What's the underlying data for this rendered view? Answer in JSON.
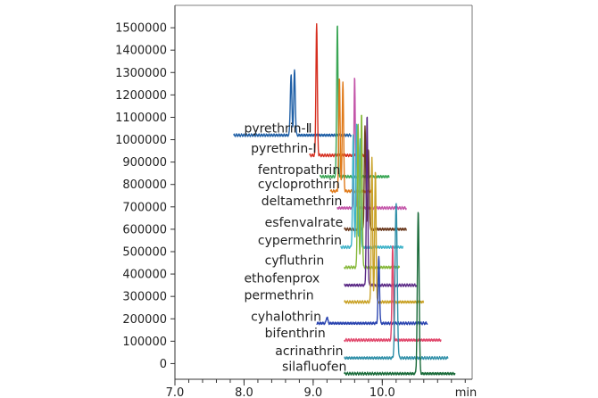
{
  "chart_data": {
    "type": "line",
    "title": "",
    "xlabel": "min",
    "ylabel": "",
    "xlim": [
      7.0,
      11.3
    ],
    "ylim": [
      -70000,
      1600000
    ],
    "grid": false,
    "legend": "inline-labels",
    "x_ticks": [
      "7.0",
      "8.0",
      "9.0",
      "10.0"
    ],
    "x_tick_values": [
      7.0,
      8.0,
      9.0,
      10.0
    ],
    "x_minor_step": 0.2,
    "y_ticks": [
      "0",
      "100000",
      "200000",
      "300000",
      "400000",
      "500000",
      "600000",
      "700000",
      "800000",
      "900000",
      "1000000",
      "1100000",
      "1200000",
      "1300000",
      "1400000",
      "1500000"
    ],
    "y_tick_values": [
      0,
      100000,
      200000,
      300000,
      400000,
      500000,
      600000,
      700000,
      800000,
      900000,
      1000000,
      1100000,
      1200000,
      1300000,
      1400000,
      1500000
    ],
    "series": [
      {
        "name": "pyrethrin-Ⅱ",
        "color": "#1f5fa6",
        "label_x": 8.0,
        "baseline": 1020000,
        "trace_start": 7.85,
        "trace_end": 9.55,
        "peaks": [
          {
            "rt": 8.68,
            "height": 1290000,
            "width": 0.022
          },
          {
            "rt": 8.73,
            "height": 1310000,
            "width": 0.022
          }
        ]
      },
      {
        "name": "pyrethrin-Ⅰ",
        "color": "#d62e1f",
        "label_x": 8.1,
        "baseline": 930000,
        "trace_start": 8.95,
        "trace_end": 9.8,
        "peaks": [
          {
            "rt": 9.05,
            "height": 1520000,
            "width": 0.02
          }
        ]
      },
      {
        "name": "fentropathrin",
        "color": "#3aa655",
        "label_x": 8.2,
        "baseline": 835000,
        "trace_start": 9.1,
        "trace_end": 10.1,
        "peaks": [
          {
            "rt": 9.35,
            "height": 1520000,
            "width": 0.02
          }
        ]
      },
      {
        "name": "cycloprothrin",
        "color": "#e07a1a",
        "label_x": 8.2,
        "baseline": 770000,
        "trace_start": 9.25,
        "trace_end": 9.85,
        "peaks": [
          {
            "rt": 9.38,
            "height": 1280000,
            "width": 0.02
          },
          {
            "rt": 9.43,
            "height": 1260000,
            "width": 0.02
          }
        ]
      },
      {
        "name": "deltamethrin",
        "color": "#c354a8",
        "label_x": 8.25,
        "baseline": 695000,
        "trace_start": 9.35,
        "trace_end": 10.35,
        "peaks": [
          {
            "rt": 9.6,
            "height": 1280000,
            "width": 0.02
          }
        ]
      },
      {
        "name": "esfenvalrate",
        "color": "#6b3a1f",
        "label_x": 8.3,
        "baseline": 600000,
        "trace_start": 9.45,
        "trace_end": 10.35,
        "peaks": [
          {
            "rt": 9.75,
            "height": 1060000,
            "width": 0.02
          },
          {
            "rt": 9.8,
            "height": 960000,
            "width": 0.02
          }
        ]
      },
      {
        "name": "cypermethrin",
        "color": "#3fb3c9",
        "label_x": 8.2,
        "baseline": 520000,
        "trace_start": 9.4,
        "trace_end": 10.3,
        "peaks": [
          {
            "rt": 9.58,
            "height": 1020000,
            "width": 0.02
          },
          {
            "rt": 9.63,
            "height": 1080000,
            "width": 0.02
          },
          {
            "rt": 9.68,
            "height": 1000000,
            "width": 0.02
          }
        ]
      },
      {
        "name": "cyfluthrin",
        "color": "#86b83a",
        "label_x": 8.3,
        "baseline": 430000,
        "trace_start": 9.45,
        "trace_end": 10.25,
        "peaks": [
          {
            "rt": 9.65,
            "height": 1070000,
            "width": 0.02
          },
          {
            "rt": 9.7,
            "height": 1120000,
            "width": 0.02
          }
        ]
      },
      {
        "name": "ethofenprox",
        "color": "#5b2a86",
        "label_x": 8.0,
        "baseline": 350000,
        "trace_start": 9.45,
        "trace_end": 10.5,
        "peaks": [
          {
            "rt": 9.78,
            "height": 1110000,
            "width": 0.02
          }
        ]
      },
      {
        "name": "permethrin",
        "color": "#c9a227",
        "label_x": 8.0,
        "baseline": 275000,
        "trace_start": 9.45,
        "trace_end": 10.6,
        "peaks": [
          {
            "rt": 9.85,
            "height": 920000,
            "width": 0.02
          },
          {
            "rt": 9.9,
            "height": 860000,
            "width": 0.02
          }
        ]
      },
      {
        "name": "cyhalothrin",
        "color": "#2a44b0",
        "label_x": 8.1,
        "baseline": 180000,
        "trace_start": 9.05,
        "trace_end": 10.65,
        "peaks": [
          {
            "rt": 9.2,
            "height": 210000,
            "width": 0.02
          },
          {
            "rt": 9.95,
            "height": 480000,
            "width": 0.02
          }
        ]
      },
      {
        "name": "bifenthrin",
        "color": "#e0476b",
        "label_x": 8.3,
        "baseline": 105000,
        "trace_start": 9.45,
        "trace_end": 10.85,
        "peaks": [
          {
            "rt": 10.15,
            "height": 530000,
            "width": 0.02
          }
        ]
      },
      {
        "name": "acrinathrin",
        "color": "#2f8fa8",
        "label_x": 8.45,
        "baseline": 25000,
        "trace_start": 9.45,
        "trace_end": 10.95,
        "peaks": [
          {
            "rt": 10.2,
            "height": 720000,
            "width": 0.03
          }
        ]
      },
      {
        "name": "silafluofen",
        "color": "#1a6b3a",
        "label_x": 8.55,
        "baseline": -45000,
        "trace_start": 9.45,
        "trace_end": 11.05,
        "peaks": [
          {
            "rt": 10.52,
            "height": 680000,
            "width": 0.025
          }
        ]
      }
    ]
  }
}
